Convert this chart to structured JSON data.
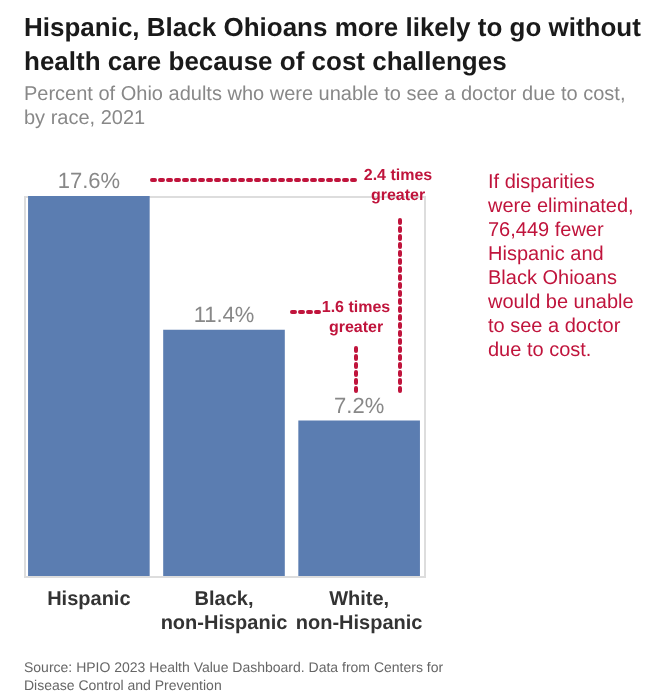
{
  "chart_data": {
    "type": "bar",
    "title": "Hispanic, Black Ohioans more likely to go without\nhealth care because of cost challenges",
    "subtitle": "Percent of Ohio adults who were unable to see a doctor due to cost,\nby race, 2021",
    "categories": [
      "Hispanic",
      "Black,\nnon-Hispanic",
      "White,\nnon-Hispanic"
    ],
    "values": [
      17.6,
      11.4,
      7.2
    ],
    "color": "#5b7db1",
    "value_labels": [
      "17.6%",
      "11.4%",
      "7.2%"
    ],
    "annotations": [
      "2.4 times\ngreater",
      "1.6 times\ngreater",
      "If disparities\nwere eliminated,\n76,449 fewer\nHispanic and\nBlack Ohioans\nwould be unable\nto see a doctor\ndue to cost.",
      "Source: HPIO 2023 Health Value Dashboard. Data from Centers for\nDisease Control and Prevention"
    ],
    "grid": false
  }
}
